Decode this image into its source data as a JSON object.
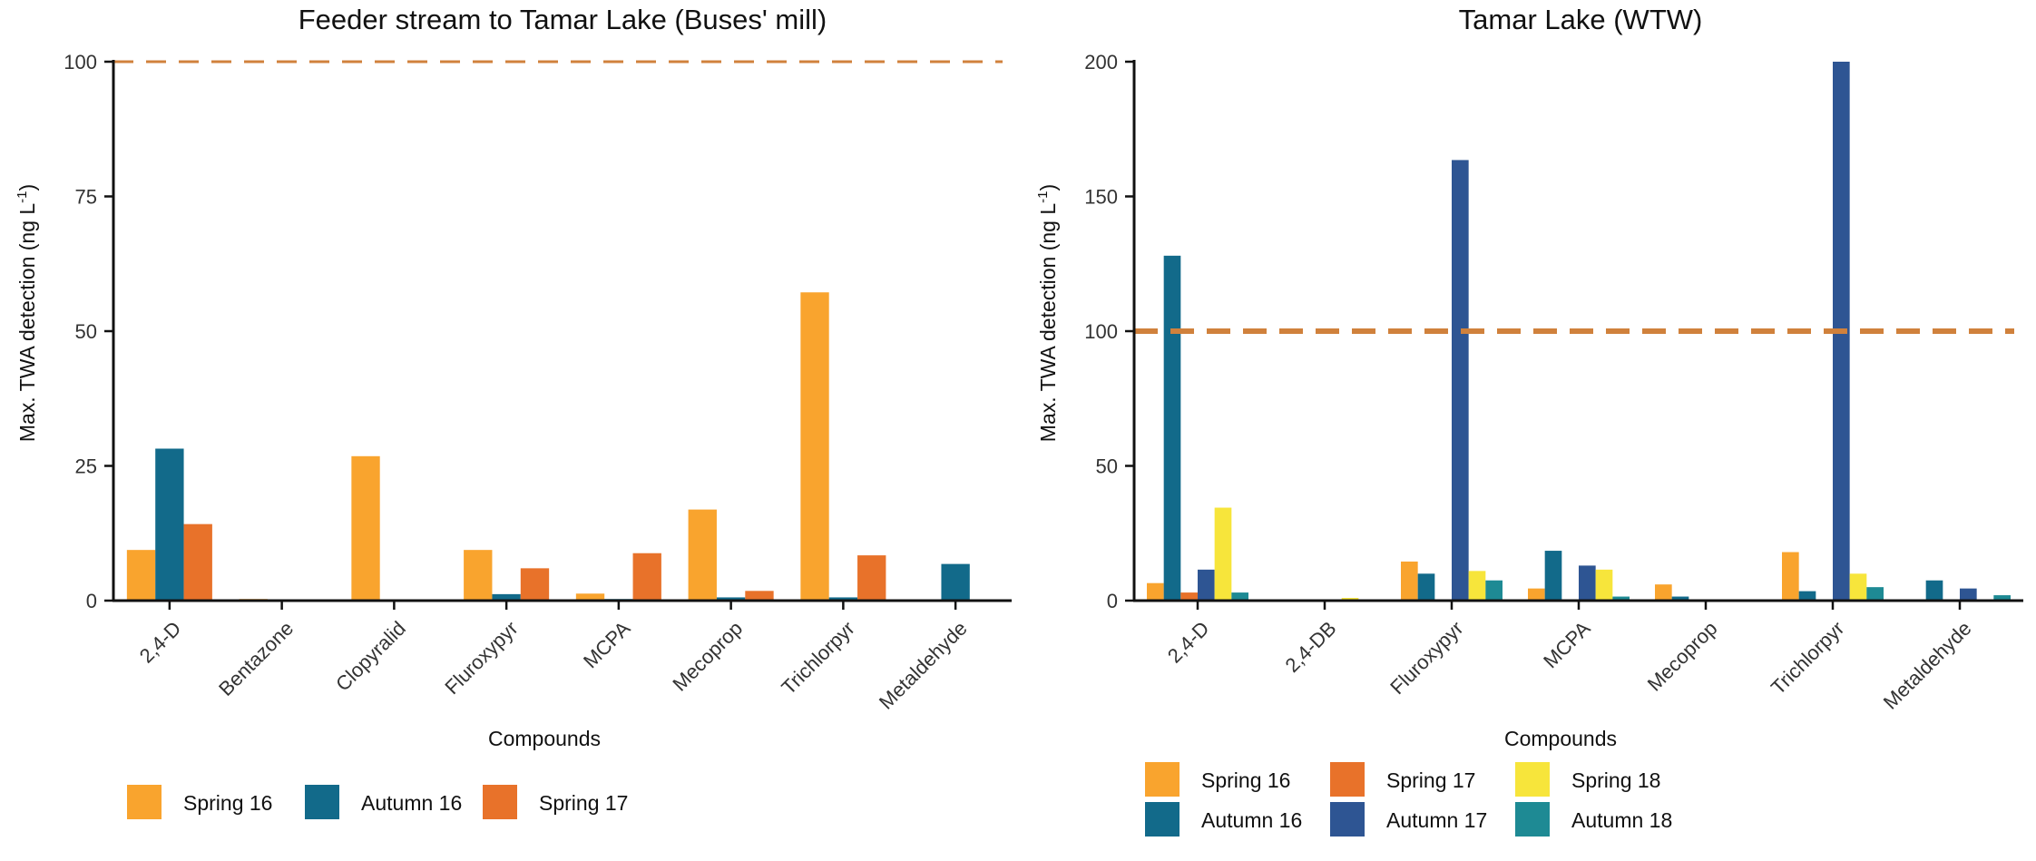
{
  "chart_data": [
    {
      "type": "bar",
      "title": "Feeder stream to Tamar Lake (Buses' mill)",
      "xlabel": "Compounds",
      "ylabel": "Max. TWA detection (ng L",
      "ylabel_sup": "-1",
      "ylabel_close": ")",
      "ylim": [
        0,
        100
      ],
      "yticks": [
        "0",
        "25",
        "50",
        "75",
        "100"
      ],
      "reference_line": 100,
      "categories": [
        "2,4-D",
        "Bentazone",
        "Clopyralid",
        "Fluroxypyr",
        "MCPA",
        "Mecoprop",
        "Trichlorpyr",
        "Metaldehyde"
      ],
      "series": [
        {
          "name": "Spring 16",
          "color": "#F9A42E",
          "values": [
            9.4,
            0.3,
            26.8,
            9.4,
            1.3,
            16.9,
            57.2,
            0
          ]
        },
        {
          "name": "Autumn 16",
          "color": "#126A8A",
          "values": [
            28.2,
            0,
            0,
            1.2,
            0.3,
            0.6,
            0.6,
            6.8
          ]
        },
        {
          "name": "Spring 17",
          "color": "#E8722A",
          "values": [
            14.2,
            0,
            0,
            6.0,
            8.8,
            1.8,
            8.4,
            0
          ]
        }
      ],
      "grid": false,
      "legend_position": "bottom"
    },
    {
      "type": "bar",
      "title": "Tamar Lake (WTW)",
      "xlabel": "Compounds",
      "ylabel": "Max. TWA detection (ng L",
      "ylabel_sup": "-1",
      "ylabel_close": ")",
      "ylim": [
        0,
        200
      ],
      "yticks": [
        "0",
        "50",
        "100",
        "150",
        "200"
      ],
      "reference_line": 100,
      "categories": [
        "2,4-D",
        "2,4-DB",
        "Fluroxypyr",
        "MCPA",
        "Mecoprop",
        "Trichlorpyr",
        "Metaldehyde"
      ],
      "series": [
        {
          "name": "Spring 16",
          "color": "#F9A42E",
          "values": [
            6.5,
            0,
            14.5,
            4.5,
            6.0,
            18.0,
            0
          ]
        },
        {
          "name": "Autumn 16",
          "color": "#126A8A",
          "values": [
            128,
            0,
            10.0,
            18.5,
            1.5,
            3.5,
            7.5
          ]
        },
        {
          "name": "Spring 17",
          "color": "#E8722A",
          "values": [
            3.0,
            0,
            0,
            0,
            0,
            0,
            0
          ]
        },
        {
          "name": "Autumn 17",
          "color": "#2E5593",
          "values": [
            11.5,
            0,
            163.5,
            13.0,
            0.3,
            201,
            4.5
          ]
        },
        {
          "name": "Spring 18",
          "color": "#F7E53B",
          "values": [
            34.5,
            1.0,
            11.0,
            11.5,
            0,
            10.0,
            0
          ]
        },
        {
          "name": "Autumn 18",
          "color": "#1E8A94",
          "values": [
            3.0,
            0,
            7.5,
            1.5,
            0,
            5.0,
            2.0
          ]
        }
      ],
      "grid": false,
      "legend_position": "bottom"
    }
  ]
}
